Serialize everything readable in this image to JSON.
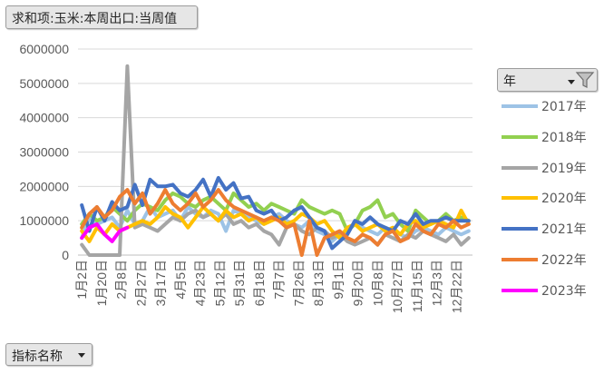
{
  "pivot": {
    "value_field": "求和项:玉米:本周出口:当周值",
    "row_field": "指标名称",
    "legend_field": "年"
  },
  "chart_data": {
    "type": "line",
    "ylim": [
      0,
      6000000
    ],
    "yticks": [
      "0",
      "1000000",
      "2000000",
      "3000000",
      "4000000",
      "5000000",
      "6000000"
    ],
    "xticks": [
      "1月2日",
      "1月20日",
      "2月8日",
      "2月27日",
      "3月17日",
      "4月5日",
      "4月23日",
      "5月12日",
      "5月31日",
      "6月18日",
      "7月7日",
      "7月26日",
      "8月13日",
      "9月1日",
      "9月20日",
      "10月8日",
      "10月27日",
      "11月15日",
      "12月3日",
      "12月22日"
    ],
    "categories_count": 52,
    "grid": true,
    "legend_position": "right",
    "series": [
      {
        "name": "2017年",
        "color": "#9dc3e6",
        "values": [
          500000,
          1100000,
          900000,
          1000000,
          1100000,
          800000,
          1300000,
          900000,
          1000000,
          1400000,
          1100000,
          1200000,
          1300000,
          1000000,
          1400000,
          1200000,
          1100000,
          1300000,
          1200000,
          700000,
          1300000,
          1200000,
          1100000,
          1000000,
          900000,
          1100000,
          1200000,
          1000000,
          900000,
          800000,
          1000000,
          700000,
          600000,
          400000,
          600000,
          700000,
          900000,
          800000,
          700000,
          600000,
          800000,
          700000,
          600000,
          500000,
          700000,
          800000,
          700000,
          600000,
          800000,
          700000,
          600000,
          700000
        ]
      },
      {
        "name": "2018年",
        "color": "#92d050",
        "values": [
          900000,
          1200000,
          1000000,
          1100000,
          1400000,
          1200000,
          1000000,
          1300000,
          1500000,
          1400000,
          1300000,
          1600000,
          1800000,
          1700000,
          1500000,
          1400000,
          1600000,
          1700000,
          1500000,
          1300000,
          1800000,
          1600000,
          1400000,
          1500000,
          1300000,
          1500000,
          1400000,
          1300000,
          1200000,
          1600000,
          1400000,
          1300000,
          1200000,
          1300000,
          1200000,
          700000,
          900000,
          1300000,
          1400000,
          1600000,
          1100000,
          1200000,
          900000,
          700000,
          1300000,
          1100000,
          900000,
          1000000,
          1200000,
          1000000,
          1100000,
          1000000
        ]
      },
      {
        "name": "2019年",
        "color": "#a5a5a5",
        "values": [
          300000,
          0,
          0,
          0,
          0,
          0,
          5500000,
          800000,
          900000,
          800000,
          700000,
          900000,
          1100000,
          1000000,
          1200000,
          1300000,
          1100000,
          1200000,
          1000000,
          1200000,
          900000,
          1000000,
          800000,
          900000,
          700000,
          600000,
          300000,
          800000,
          900000,
          700000,
          600000,
          800000,
          700000,
          500000,
          600000,
          400000,
          300000,
          400000,
          500000,
          300000,
          600000,
          500000,
          400000,
          600000,
          500000,
          700000,
          600000,
          500000,
          400000,
          600000,
          300000,
          500000
        ]
      },
      {
        "name": "2020年",
        "color": "#ffc000",
        "values": [
          700000,
          400000,
          800000,
          600000,
          900000,
          700000,
          800000,
          900000,
          1000000,
          900000,
          1100000,
          1400000,
          1200000,
          1100000,
          800000,
          1100000,
          1400000,
          1200000,
          1000000,
          1300000,
          1100000,
          1200000,
          1000000,
          1100000,
          900000,
          1000000,
          1100000,
          900000,
          1000000,
          1200000,
          1100000,
          900000,
          1000000,
          700000,
          500000,
          800000,
          900000,
          700000,
          800000,
          900000,
          700000,
          800000,
          600000,
          900000,
          1000000,
          800000,
          900000,
          1000000,
          900000,
          800000,
          1300000,
          900000
        ]
      },
      {
        "name": "2021年",
        "color": "#4472c4",
        "values": [
          1450000,
          700000,
          1400000,
          1000000,
          1550000,
          1300000,
          1400000,
          2050000,
          1450000,
          2200000,
          2000000,
          2000000,
          2050000,
          1800000,
          1700000,
          1900000,
          2200000,
          1700000,
          2250000,
          1900000,
          2100000,
          1650000,
          1700000,
          1300000,
          1200000,
          1300000,
          1000000,
          1100000,
          1300000,
          1400000,
          1100000,
          800000,
          700000,
          200000,
          400000,
          600000,
          1000000,
          900000,
          1100000,
          900000,
          800000,
          700000,
          1000000,
          900000,
          1200000,
          900000,
          1000000,
          1000000,
          1100000,
          1000000,
          1000000,
          1000000
        ]
      },
      {
        "name": "2022年",
        "color": "#ed7d31",
        "values": [
          800000,
          1200000,
          1400000,
          1100000,
          1300000,
          1700000,
          1900000,
          1500000,
          1800000,
          1200000,
          1500000,
          1900000,
          1500000,
          1300000,
          1500000,
          1800000,
          1400000,
          1600000,
          1900000,
          1600000,
          1400000,
          1300000,
          1200000,
          1100000,
          1000000,
          1100000,
          1000000,
          800000,
          900000,
          0,
          1000000,
          0,
          500000,
          600000,
          700000,
          500000,
          400000,
          600000,
          500000,
          300000,
          600000,
          700000,
          400000,
          500000,
          900000,
          700000,
          600000,
          900000,
          800000,
          1000000,
          800000,
          900000
        ]
      },
      {
        "name": "2023年",
        "color": "#ff00ff",
        "values": [
          500000,
          800000,
          900000,
          600000,
          400000,
          700000,
          800000
        ]
      }
    ]
  }
}
